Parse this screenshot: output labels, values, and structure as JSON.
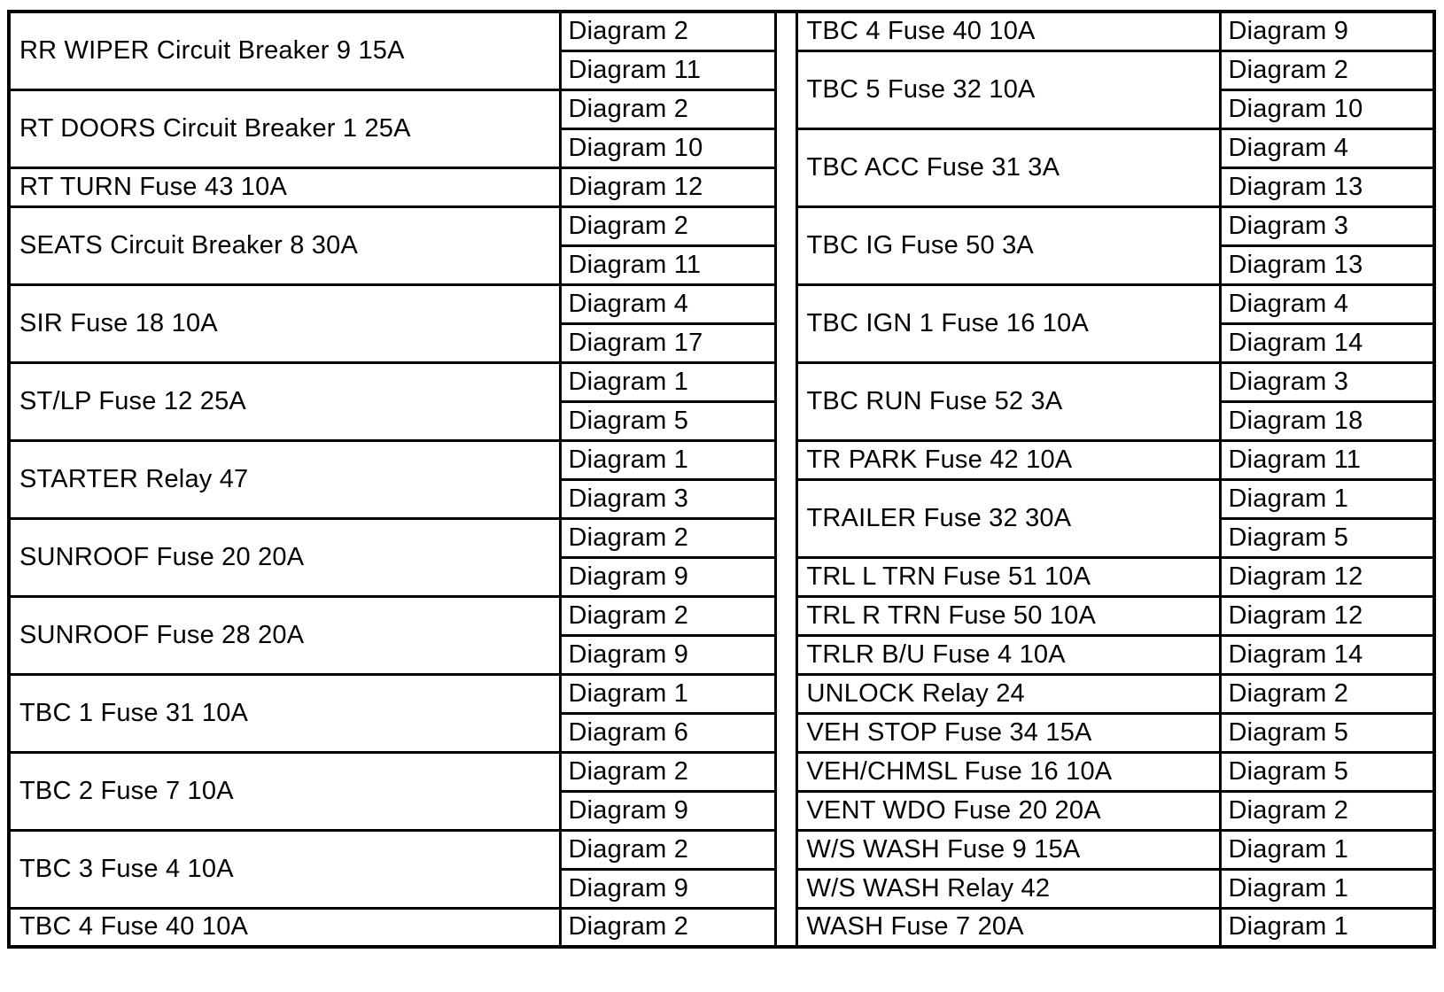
{
  "page": {
    "background_color": "#ffffff",
    "border_color": "#000000",
    "text_color": "#000000"
  },
  "fuse_table": {
    "left": [
      {
        "device": "RR WIPER Circuit Breaker 9 15A",
        "diagrams": [
          "Diagram 2",
          "Diagram 11"
        ]
      },
      {
        "device": "RT DOORS Circuit Breaker 1 25A",
        "diagrams": [
          "Diagram 2",
          "Diagram 10"
        ]
      },
      {
        "device": "RT TURN Fuse 43 10A",
        "diagrams": [
          "Diagram 12"
        ]
      },
      {
        "device": "SEATS Circuit Breaker 8 30A",
        "diagrams": [
          "Diagram 2",
          "Diagram 11"
        ]
      },
      {
        "device": "SIR Fuse 18 10A",
        "diagrams": [
          "Diagram 4",
          "Diagram 17"
        ]
      },
      {
        "device": "ST/LP Fuse 12 25A",
        "diagrams": [
          "Diagram 1",
          "Diagram 5"
        ]
      },
      {
        "device": "STARTER Relay 47",
        "diagrams": [
          "Diagram 1",
          "Diagram 3"
        ]
      },
      {
        "device": "SUNROOF Fuse 20 20A",
        "diagrams": [
          "Diagram 2",
          "Diagram 9"
        ]
      },
      {
        "device": "SUNROOF Fuse 28 20A",
        "diagrams": [
          "Diagram 2",
          "Diagram 9"
        ]
      },
      {
        "device": "TBC 1 Fuse 31 10A",
        "diagrams": [
          "Diagram 1",
          "Diagram 6"
        ]
      },
      {
        "device": "TBC 2 Fuse 7 10A",
        "diagrams": [
          "Diagram 2",
          "Diagram 9"
        ]
      },
      {
        "device": "TBC 3 Fuse 4 10A",
        "diagrams": [
          "Diagram 2",
          "Diagram 9"
        ]
      },
      {
        "device": "TBC 4 Fuse 40 10A",
        "diagrams": [
          "Diagram 2"
        ]
      }
    ],
    "right": [
      {
        "device": "TBC 4 Fuse 40 10A",
        "diagrams": [
          "Diagram 9"
        ]
      },
      {
        "device": "TBC 5 Fuse 32 10A",
        "diagrams": [
          "Diagram 2",
          "Diagram 10"
        ]
      },
      {
        "device": "TBC ACC Fuse 31 3A",
        "diagrams": [
          "Diagram 4",
          "Diagram 13"
        ]
      },
      {
        "device": "TBC IG Fuse 50 3A",
        "diagrams": [
          "Diagram 3",
          "Diagram 13"
        ]
      },
      {
        "device": "TBC IGN 1 Fuse 16 10A",
        "diagrams": [
          "Diagram 4",
          "Diagram 14"
        ]
      },
      {
        "device": "TBC RUN Fuse 52 3A",
        "diagrams": [
          "Diagram 3",
          "Diagram 18"
        ]
      },
      {
        "device": "TR PARK Fuse 42 10A",
        "diagrams": [
          "Diagram 11"
        ]
      },
      {
        "device": "TRAILER Fuse 32 30A",
        "diagrams": [
          "Diagram 1",
          "Diagram 5"
        ]
      },
      {
        "device": "TRL L TRN Fuse 51 10A",
        "diagrams": [
          "Diagram 12"
        ]
      },
      {
        "device": "TRL R TRN Fuse 50 10A",
        "diagrams": [
          "Diagram 12"
        ]
      },
      {
        "device": "TRLR B/U Fuse 4 10A",
        "diagrams": [
          "Diagram 14"
        ]
      },
      {
        "device": "UNLOCK Relay 24",
        "diagrams": [
          "Diagram 2"
        ]
      },
      {
        "device": "VEH STOP Fuse 34 15A",
        "diagrams": [
          "Diagram 5"
        ]
      },
      {
        "device": "VEH/CHMSL Fuse 16 10A",
        "diagrams": [
          "Diagram 5"
        ]
      },
      {
        "device": "VENT WDO Fuse 20 20A",
        "diagrams": [
          "Diagram 2"
        ]
      },
      {
        "device": "W/S WASH Fuse 9 15A",
        "diagrams": [
          "Diagram 1"
        ]
      },
      {
        "device": "W/S WASH Relay 42",
        "diagrams": [
          "Diagram 1"
        ]
      },
      {
        "device": "WASH Fuse 7 20A",
        "diagrams": [
          "Diagram 1"
        ]
      }
    ]
  }
}
